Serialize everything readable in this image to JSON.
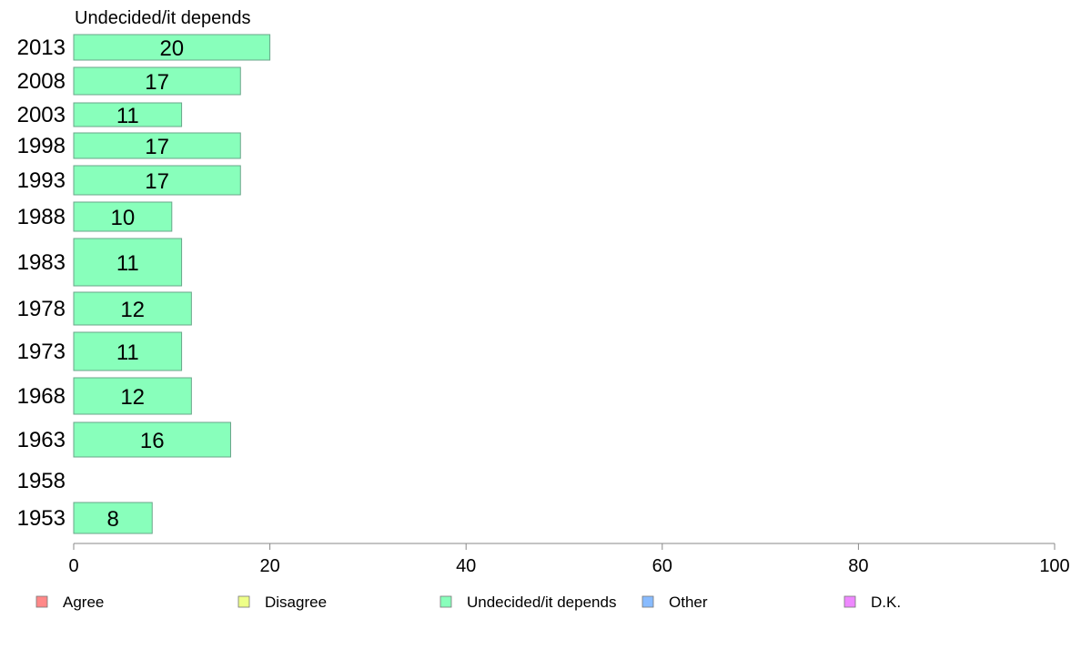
{
  "chart_data": {
    "type": "bar",
    "orientation": "horizontal",
    "panel_title": "Undecided/it depends",
    "categories": [
      "2013",
      "2008",
      "2003",
      "1998",
      "1993",
      "1988",
      "1983",
      "1978",
      "1973",
      "1968",
      "1963",
      "1958",
      "1953"
    ],
    "series": [
      {
        "name": "Undecided/it depends",
        "color": "#88ffbb",
        "values": [
          20,
          17,
          11,
          17,
          17,
          10,
          11,
          12,
          11,
          12,
          16,
          null,
          8
        ]
      }
    ],
    "xlim": [
      0,
      100
    ],
    "xticks": [
      0,
      20,
      40,
      60,
      80,
      100
    ],
    "legend": {
      "position": "bottom",
      "items": [
        {
          "label": "Agree",
          "color": "#ff8888"
        },
        {
          "label": "Disagree",
          "color": "#eeff88"
        },
        {
          "label": "Undecided/it depends",
          "color": "#88ffbb"
        },
        {
          "label": "Other",
          "color": "#88bbff"
        },
        {
          "label": "D.K.",
          "color": "#ee88ff"
        }
      ]
    },
    "grid": false
  }
}
